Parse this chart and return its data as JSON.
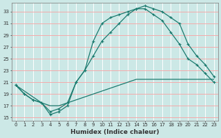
{
  "xlabel": "Humidex (Indice chaleur)",
  "xlim": [
    -0.5,
    23.5
  ],
  "ylim": [
    14.5,
    34.5
  ],
  "yticks": [
    15,
    17,
    19,
    21,
    23,
    25,
    27,
    29,
    31,
    33
  ],
  "xticks": [
    0,
    1,
    2,
    3,
    4,
    5,
    6,
    7,
    8,
    9,
    10,
    11,
    12,
    13,
    14,
    15,
    16,
    17,
    18,
    19,
    20,
    21,
    22,
    23
  ],
  "bg_color": "#cce8e6",
  "line_color": "#1a7a6e",
  "grid_color": "#aad4d0",
  "line1_x": [
    0,
    1,
    2,
    3,
    4,
    5,
    6,
    7,
    8,
    9,
    10,
    11,
    12,
    13,
    14,
    15,
    16,
    17,
    18,
    19,
    20,
    21,
    22,
    23
  ],
  "line1_y": [
    20.5,
    19.0,
    18.0,
    17.5,
    15.5,
    16.0,
    17.0,
    21.0,
    23.0,
    28.0,
    31.0,
    32.0,
    32.5,
    33.0,
    33.5,
    34.0,
    33.5,
    33.0,
    32.0,
    31.0,
    27.5,
    25.5,
    24.0,
    22.0
  ],
  "line2_x": [
    0,
    1,
    2,
    3,
    4,
    5,
    6,
    7,
    8,
    9,
    10,
    11,
    12,
    13,
    14,
    15,
    16,
    17,
    18,
    19,
    20,
    21,
    22,
    23
  ],
  "line2_y": [
    20.5,
    19.0,
    18.0,
    17.5,
    16.0,
    16.5,
    17.5,
    21.0,
    23.0,
    25.5,
    28.0,
    29.5,
    31.0,
    32.5,
    33.5,
    33.5,
    32.5,
    31.5,
    29.5,
    27.5,
    25.0,
    24.0,
    22.5,
    21.0
  ],
  "line3_x": [
    0,
    1,
    2,
    3,
    4,
    5,
    6,
    7,
    8,
    9,
    10,
    11,
    12,
    13,
    14,
    15,
    16,
    17,
    18,
    19,
    20,
    21,
    22,
    23
  ],
  "line3_y": [
    20.5,
    19.5,
    18.5,
    17.5,
    17.0,
    17.0,
    17.5,
    18.0,
    18.5,
    19.0,
    19.5,
    20.0,
    20.5,
    21.0,
    21.5,
    21.5,
    21.5,
    21.5,
    21.5,
    21.5,
    21.5,
    21.5,
    21.5,
    21.5
  ]
}
